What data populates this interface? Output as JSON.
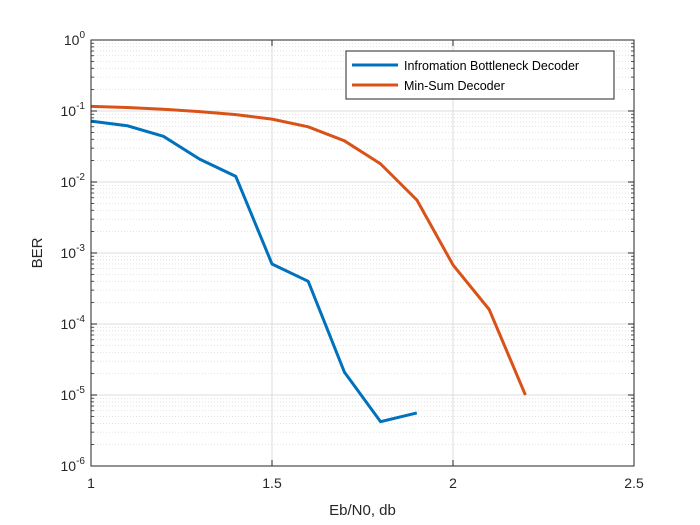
{
  "chart_data": {
    "type": "line",
    "title": "",
    "xlabel": "Eb/N0, db",
    "ylabel": "BER",
    "xlim": [
      1,
      2.5
    ],
    "ylim": [
      1e-06,
      1
    ],
    "yscale": "log",
    "grid": true,
    "minor_grid": true,
    "legend_position": "top-right",
    "x_ticks": [
      {
        "value": 1,
        "label": "1"
      },
      {
        "value": 1.5,
        "label": "1.5"
      },
      {
        "value": 2,
        "label": "2"
      },
      {
        "value": 2.5,
        "label": "2.5"
      }
    ],
    "y_ticks": [
      {
        "value": 1e-06,
        "base": "10",
        "exp": "-6"
      },
      {
        "value": 1e-05,
        "base": "10",
        "exp": "-5"
      },
      {
        "value": 0.0001,
        "base": "10",
        "exp": "-4"
      },
      {
        "value": 0.001,
        "base": "10",
        "exp": "-3"
      },
      {
        "value": 0.01,
        "base": "10",
        "exp": "-2"
      },
      {
        "value": 0.1,
        "base": "10",
        "exp": "-1"
      },
      {
        "value": 1,
        "base": "10",
        "exp": "0"
      }
    ],
    "series": [
      {
        "name": "Infromation Bottleneck Decoder",
        "color": "#0072BD",
        "x": [
          1.0,
          1.1,
          1.2,
          1.3,
          1.4,
          1.5,
          1.6,
          1.7,
          1.8,
          1.9
        ],
        "y": [
          0.072,
          0.062,
          0.044,
          0.021,
          0.012,
          0.0007,
          0.0004,
          2.1e-05,
          4.2e-06,
          5.6e-06
        ]
      },
      {
        "name": "Min-Sum Decoder",
        "color": "#D95319",
        "x": [
          1.0,
          1.1,
          1.2,
          1.3,
          1.4,
          1.5,
          1.6,
          1.7,
          1.8,
          1.9,
          2.0,
          2.1,
          2.2
        ],
        "y": [
          0.116,
          0.112,
          0.106,
          0.098,
          0.089,
          0.077,
          0.06,
          0.038,
          0.018,
          0.0056,
          0.00068,
          0.00016,
          1e-05
        ]
      }
    ]
  }
}
